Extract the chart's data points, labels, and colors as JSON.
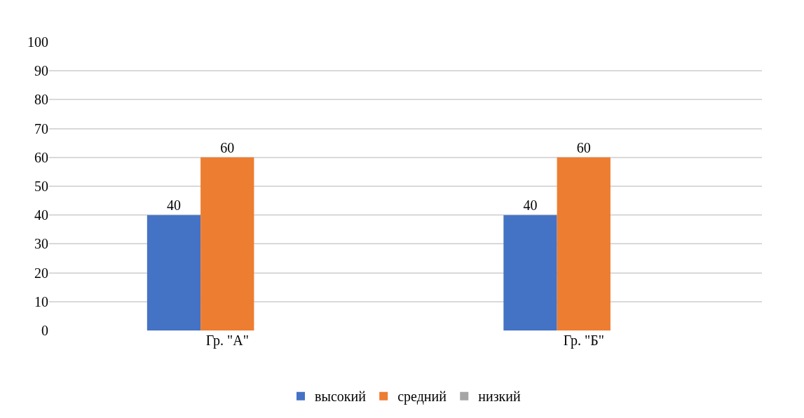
{
  "chart_data": {
    "type": "bar",
    "categories": [
      "Гр. \"А\"",
      "Гр. \"Б\""
    ],
    "series": [
      {
        "name": "высокий",
        "color": "#4472c4",
        "values": [
          40,
          40
        ]
      },
      {
        "name": "средний",
        "color": "#ed7d31",
        "values": [
          60,
          60
        ]
      },
      {
        "name": "низкий",
        "color": "#a5a5a5",
        "values": [
          null,
          null
        ]
      }
    ],
    "ylim": [
      0,
      100
    ],
    "yticks": [
      0,
      10,
      20,
      30,
      40,
      50,
      60,
      70,
      80,
      90,
      100
    ],
    "grid": "y",
    "legend": "bottom",
    "data_labels": true
  }
}
